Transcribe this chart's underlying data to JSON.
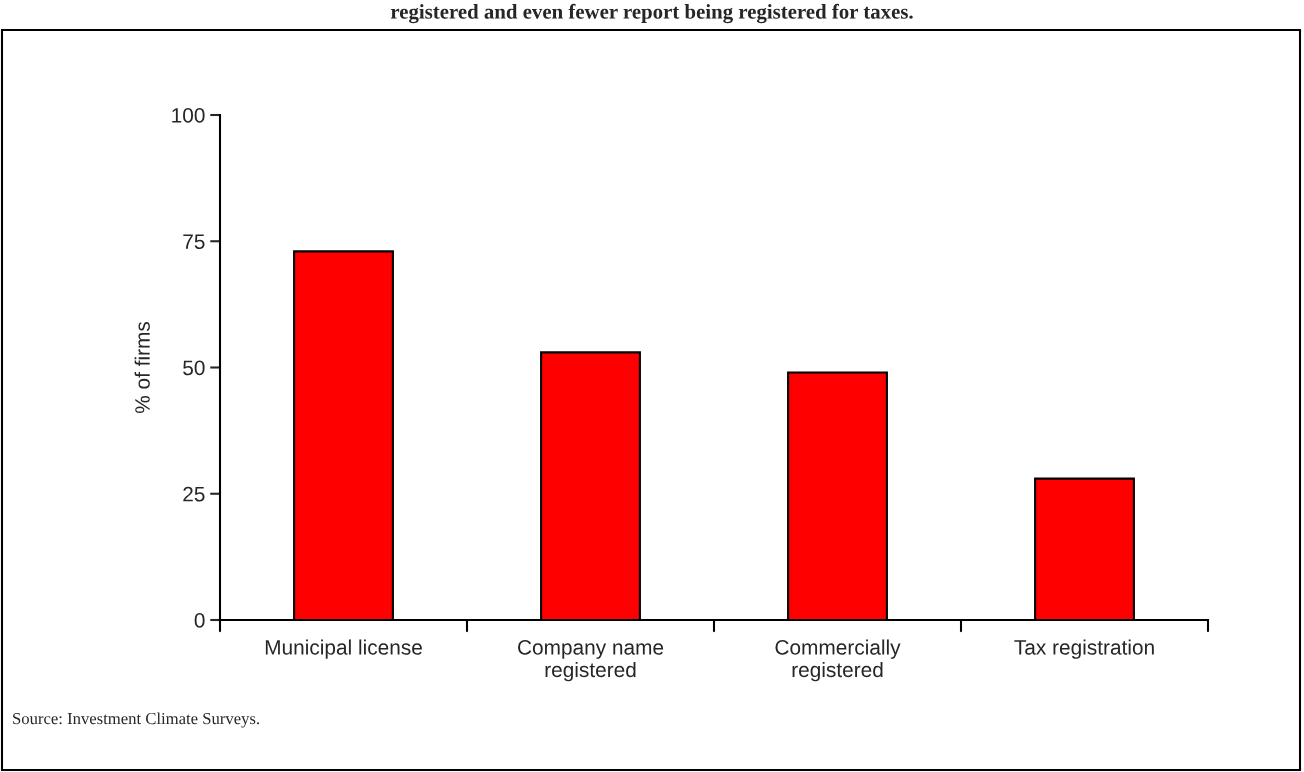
{
  "chart_data": {
    "type": "bar",
    "title": "registered and even fewer report being registered for taxes.",
    "ylabel": "% of firms",
    "categories": [
      "Municipal license",
      "Company name\nregistered",
      "Commercially\nregistered",
      "Tax registration"
    ],
    "values": [
      73,
      53,
      49,
      28
    ],
    "color": "#ff0000",
    "ylim": [
      0,
      100
    ],
    "yticks": [
      0,
      25,
      50,
      75,
      100
    ],
    "grid": false,
    "annotations": [
      "Source: Investment Climate Surveys."
    ]
  }
}
